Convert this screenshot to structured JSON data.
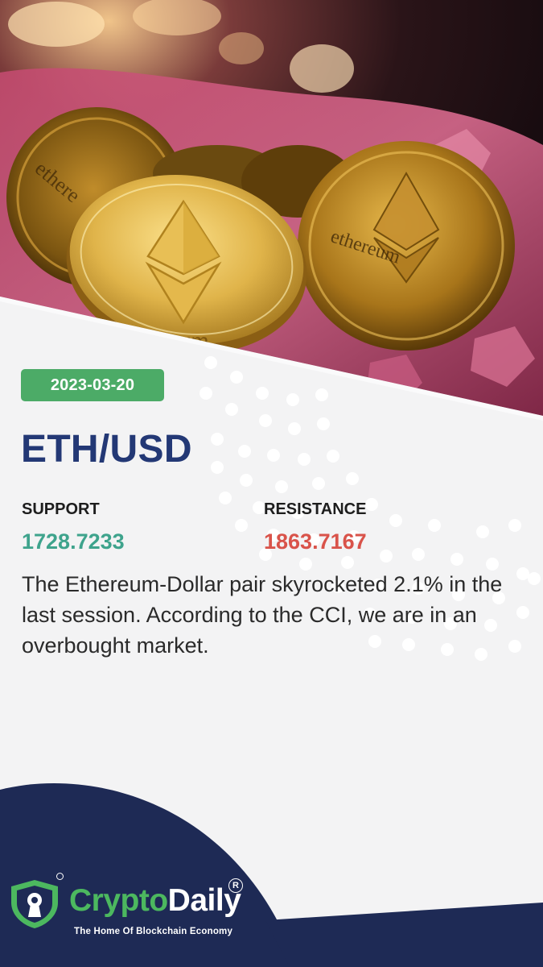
{
  "post": {
    "date": "2023-03-20",
    "pair": "ETH/USD",
    "support_label": "SUPPORT",
    "support_value": "1728.7233",
    "resistance_label": "RESISTANCE",
    "resistance_value": "1863.7167",
    "description": "The Ethereum-Dollar pair skyrocketed 2.1% in the last session. According to the CCI, we are in an overbought market."
  },
  "hero": {
    "coin_text": "ethereum",
    "coin_text_partial": "reum"
  },
  "brand": {
    "name_part1": "Crypto",
    "name_part2": "Daily",
    "registered": "R",
    "tagline": "The Home Of Blockchain Economy"
  },
  "colors": {
    "navy": "#233875",
    "green": "#4cab67",
    "support": "#3ea38c",
    "resistance": "#d9534a",
    "footer_navy": "#1e2a55",
    "brand_green": "#4cb85f"
  },
  "icons": {
    "logo": "shield-keyhole-icon"
  }
}
